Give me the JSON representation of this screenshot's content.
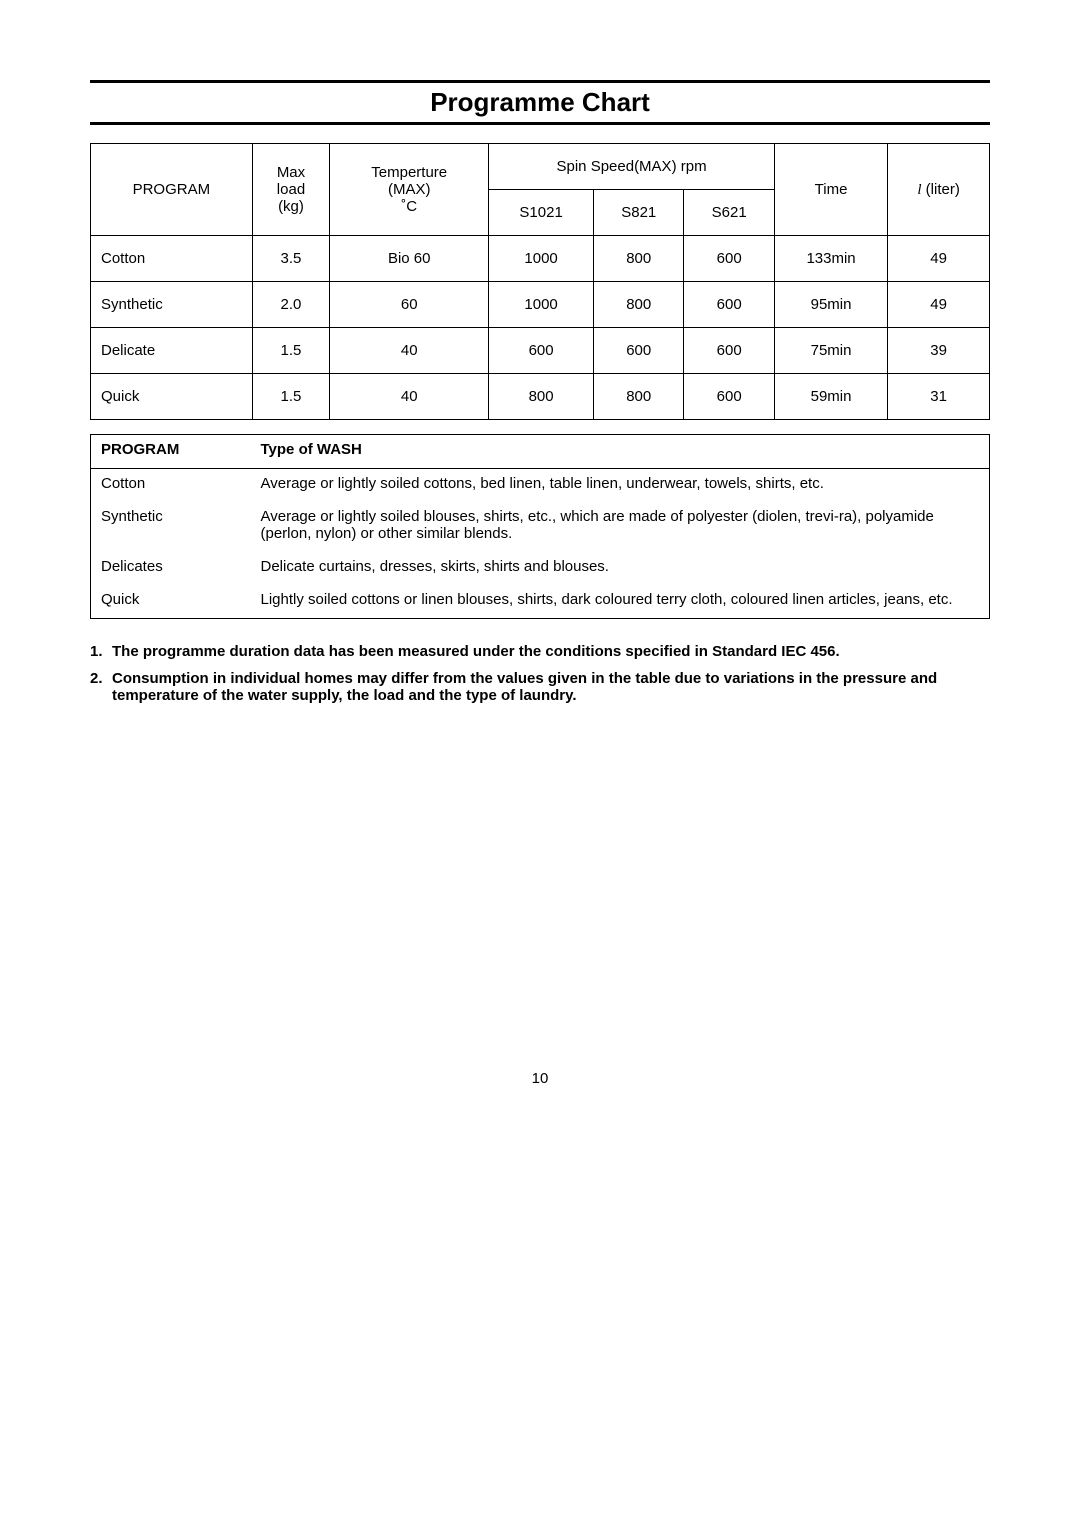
{
  "title": "Programme Chart",
  "table1": {
    "headers": {
      "program": "PROGRAM",
      "maxload": "Max load (kg)",
      "maxload_l1": "Max",
      "maxload_l2": "load",
      "maxload_l3": "(kg)",
      "temp": "Temperture (MAX) ˚C",
      "temp_l1": "Temperture",
      "temp_l2": "(MAX)",
      "temp_l3": "˚C",
      "spin": "Spin Speed(MAX) rpm",
      "s1021": "S1021",
      "s821": "S821",
      "s621": "S621",
      "time": "Time",
      "liter_prefix": "l",
      "liter_suffix": " (liter)"
    },
    "rows": [
      {
        "program": "Cotton",
        "load": "3.5",
        "temp": "Bio 60",
        "s1021": "1000",
        "s821": "800",
        "s621": "600",
        "time": "133min",
        "liter": "49"
      },
      {
        "program": "Synthetic",
        "load": "2.0",
        "temp": "60",
        "s1021": "1000",
        "s821": "800",
        "s621": "600",
        "time": "95min",
        "liter": "49"
      },
      {
        "program": "Delicate",
        "load": "1.5",
        "temp": "40",
        "s1021": "600",
        "s821": "600",
        "s621": "600",
        "time": "75min",
        "liter": "39"
      },
      {
        "program": "Quick",
        "load": "1.5",
        "temp": "40",
        "s1021": "800",
        "s821": "800",
        "s621": "600",
        "time": "59min",
        "liter": "31"
      }
    ]
  },
  "table2": {
    "header_program": "PROGRAM",
    "header_type": "Type of WASH",
    "rows": [
      {
        "program": "Cotton",
        "desc": "Average or lightly soiled cottons, bed linen, table linen, underwear, towels, shirts, etc."
      },
      {
        "program": "Synthetic",
        "desc": "Average or lightly soiled blouses, shirts, etc., which are made of polyester (diolen, trevi-ra), polyamide (perlon, nylon) or other similar blends."
      },
      {
        "program": "Delicates",
        "desc": "Delicate curtains, dresses, skirts, shirts and blouses."
      },
      {
        "program": "Quick",
        "desc": "Lightly soiled cottons or linen blouses, shirts, dark coloured terry cloth, coloured linen articles, jeans, etc."
      }
    ]
  },
  "notes": [
    {
      "num": "1.",
      "text": "The programme duration data has been measured under the conditions specified in Standard IEC 456."
    },
    {
      "num": "2.",
      "text": "Consumption in individual homes may differ from the values given in the table due to variations in the pressure and temperature of the water supply, the load and the type of laundry."
    }
  ],
  "page_number": "10",
  "colors": {
    "text": "#000000",
    "background": "#ffffff",
    "border": "#000000"
  }
}
